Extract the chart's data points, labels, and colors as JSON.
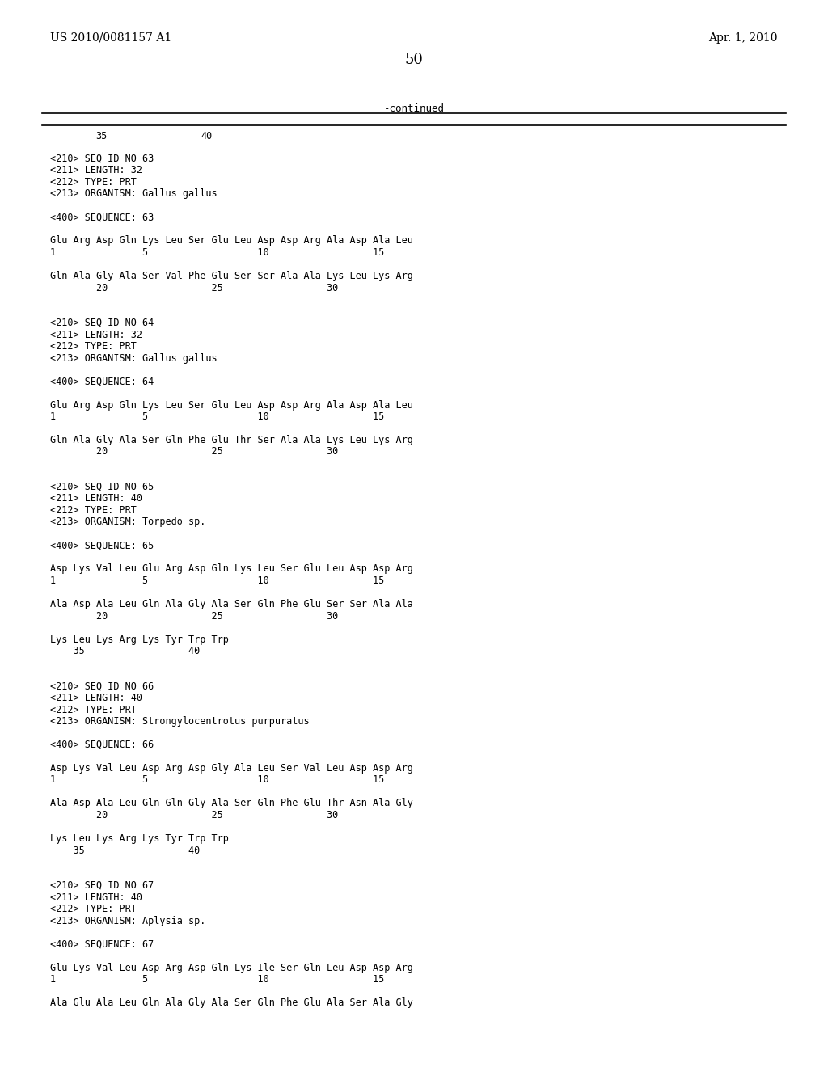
{
  "header_left": "US 2010/0081157 A1",
  "header_right": "Apr. 1, 2010",
  "page_number": "50",
  "continued_label": "-continued",
  "ruler_labels": [
    "35",
    "40"
  ],
  "background_color": "#ffffff",
  "text_color": "#000000",
  "font_size": 8.5,
  "mono_font": "DejaVu Sans Mono",
  "header_font_size": 10,
  "content": [
    "<210> SEQ ID NO 63",
    "<211> LENGTH: 32",
    "<212> TYPE: PRT",
    "<213> ORGANISM: Gallus gallus",
    "",
    "<400> SEQUENCE: 63",
    "",
    "Glu Arg Asp Gln Lys Leu Ser Glu Leu Asp Asp Arg Ala Asp Ala Leu",
    "1               5                   10                  15",
    "",
    "Gln Ala Gly Ala Ser Val Phe Glu Ser Ser Ala Ala Lys Leu Lys Arg",
    "        20                  25                  30",
    "",
    "",
    "<210> SEQ ID NO 64",
    "<211> LENGTH: 32",
    "<212> TYPE: PRT",
    "<213> ORGANISM: Gallus gallus",
    "",
    "<400> SEQUENCE: 64",
    "",
    "Glu Arg Asp Gln Lys Leu Ser Glu Leu Asp Asp Arg Ala Asp Ala Leu",
    "1               5                   10                  15",
    "",
    "Gln Ala Gly Ala Ser Gln Phe Glu Thr Ser Ala Ala Lys Leu Lys Arg",
    "        20                  25                  30",
    "",
    "",
    "<210> SEQ ID NO 65",
    "<211> LENGTH: 40",
    "<212> TYPE: PRT",
    "<213> ORGANISM: Torpedo sp.",
    "",
    "<400> SEQUENCE: 65",
    "",
    "Asp Lys Val Leu Glu Arg Asp Gln Lys Leu Ser Glu Leu Asp Asp Arg",
    "1               5                   10                  15",
    "",
    "Ala Asp Ala Leu Gln Ala Gly Ala Ser Gln Phe Glu Ser Ser Ala Ala",
    "        20                  25                  30",
    "",
    "Lys Leu Lys Arg Lys Tyr Trp Trp",
    "    35                  40",
    "",
    "",
    "<210> SEQ ID NO 66",
    "<211> LENGTH: 40",
    "<212> TYPE: PRT",
    "<213> ORGANISM: Strongylocentrotus purpuratus",
    "",
    "<400> SEQUENCE: 66",
    "",
    "Asp Lys Val Leu Asp Arg Asp Gly Ala Leu Ser Val Leu Asp Asp Arg",
    "1               5                   10                  15",
    "",
    "Ala Asp Ala Leu Gln Gln Gly Ala Ser Gln Phe Glu Thr Asn Ala Gly",
    "        20                  25                  30",
    "",
    "Lys Leu Lys Arg Lys Tyr Trp Trp",
    "    35                  40",
    "",
    "",
    "<210> SEQ ID NO 67",
    "<211> LENGTH: 40",
    "<212> TYPE: PRT",
    "<213> ORGANISM: Aplysia sp.",
    "",
    "<400> SEQUENCE: 67",
    "",
    "Glu Lys Val Leu Asp Arg Asp Gln Lys Ile Ser Gln Leu Asp Asp Arg",
    "1               5                   10                  15",
    "",
    "Ala Glu Ala Leu Gln Ala Gly Ala Ser Gln Phe Glu Ala Ser Ala Gly"
  ]
}
